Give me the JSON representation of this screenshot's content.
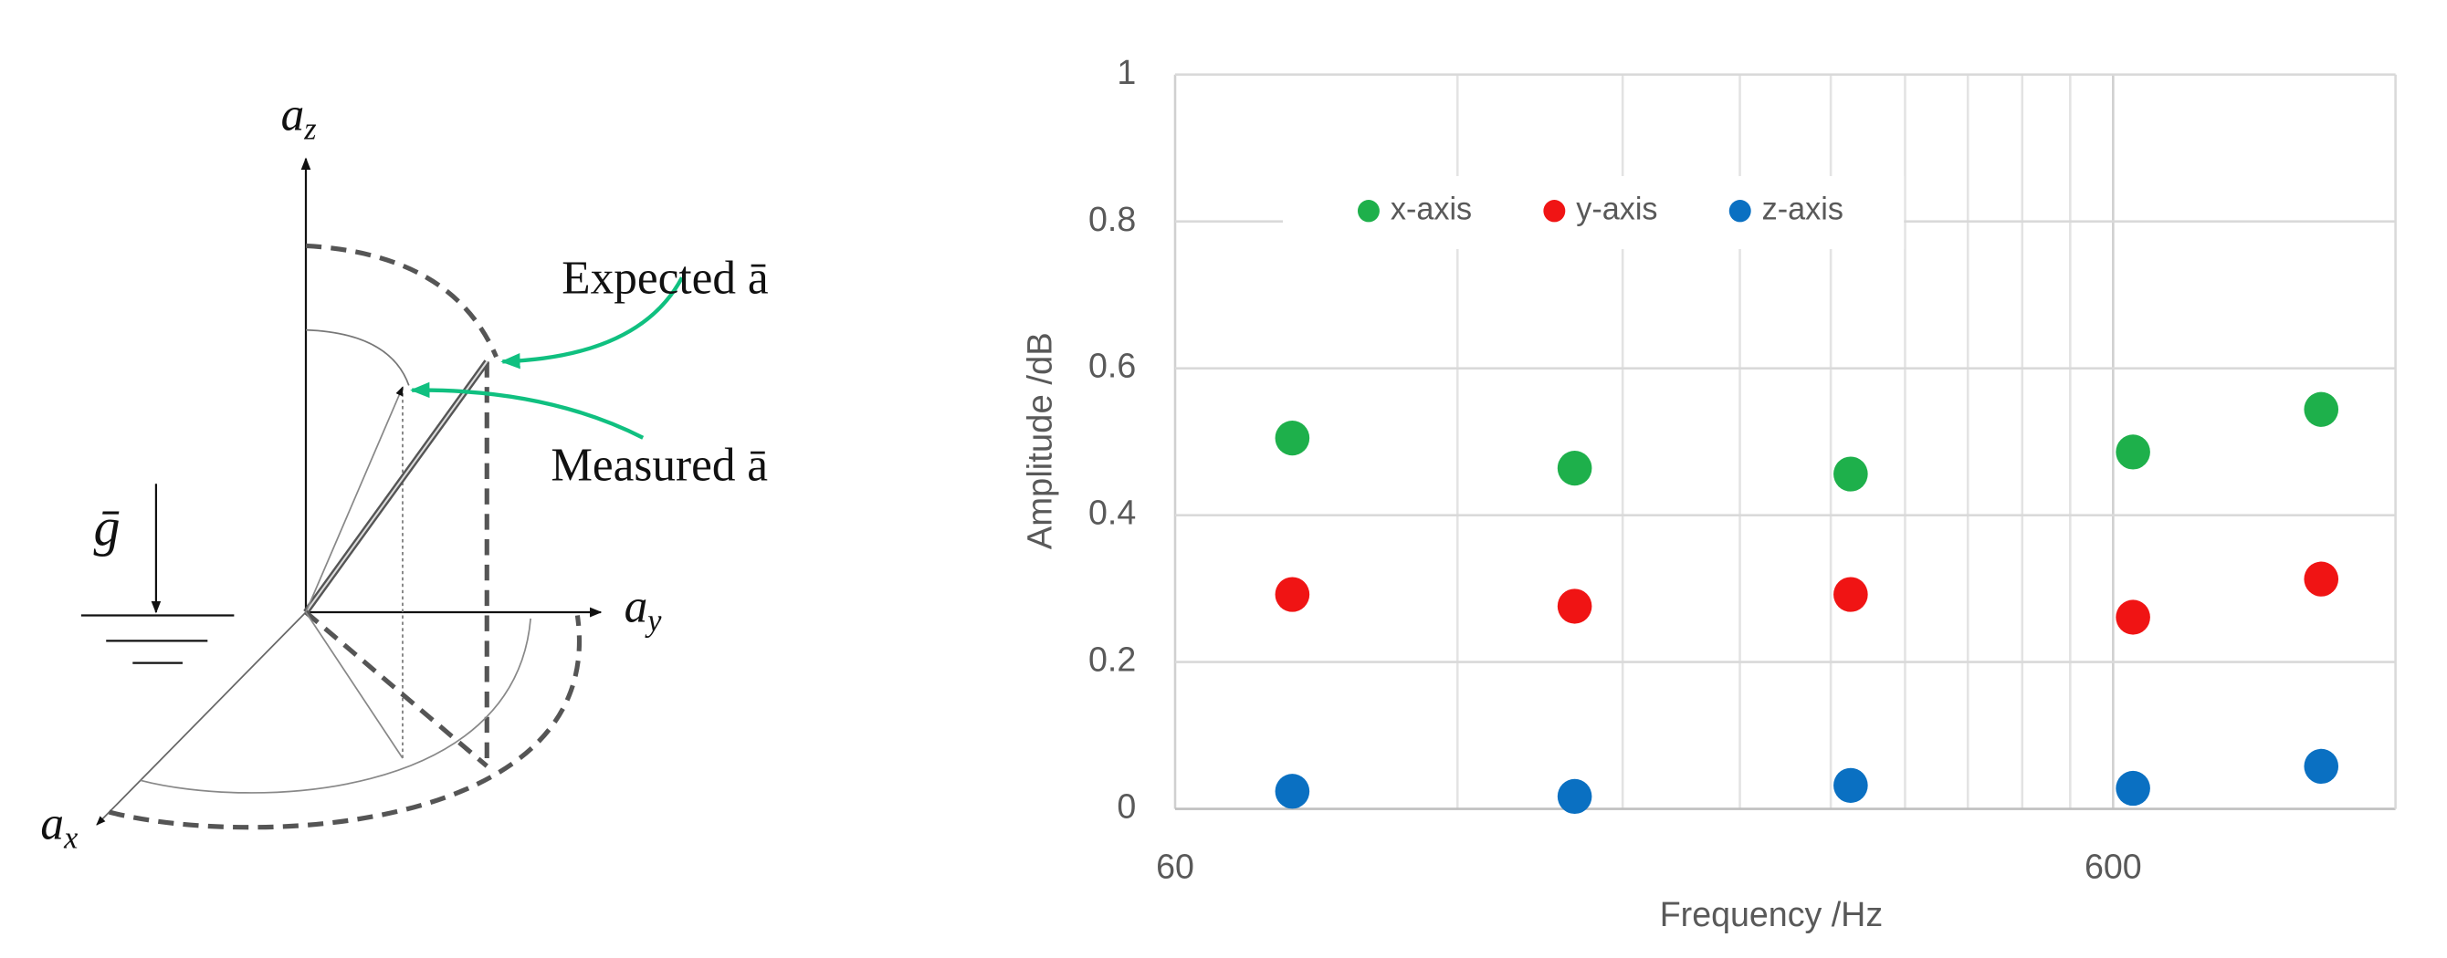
{
  "diagram": {
    "axis_z": {
      "base": "a",
      "sub": "z"
    },
    "axis_y": {
      "base": "a",
      "sub": "y"
    },
    "axis_x": {
      "base": "a",
      "sub": "x"
    },
    "gravity": "ḡ",
    "expected": "Expected ā",
    "measured": "Measured ā"
  },
  "chart_data": {
    "type": "scatter",
    "x_label": "Frequency /Hz",
    "y_label": "Amplitude /dB",
    "x": [
      80,
      160,
      315,
      630,
      1000
    ],
    "xscale": "log",
    "xlim": [
      60,
      1200
    ],
    "xticks": [
      60,
      600
    ],
    "xminorticks": [
      120,
      180,
      240,
      300,
      360,
      420,
      480,
      540
    ],
    "ylim": [
      0,
      1
    ],
    "yticks": [
      0,
      0.2,
      0.4,
      0.6,
      0.8,
      1
    ],
    "grid": true,
    "legend": "top",
    "series": [
      {
        "name": "x-axis",
        "color": "#1eb04b",
        "values": [
          0.505,
          0.464,
          0.456,
          0.486,
          0.544
        ]
      },
      {
        "name": "y-axis",
        "color": "#f01414",
        "values": [
          0.292,
          0.276,
          0.292,
          0.261,
          0.313
        ]
      },
      {
        "name": "z-axis",
        "color": "#0a70c2",
        "values": [
          0.024,
          0.017,
          0.032,
          0.028,
          0.058
        ]
      }
    ]
  }
}
